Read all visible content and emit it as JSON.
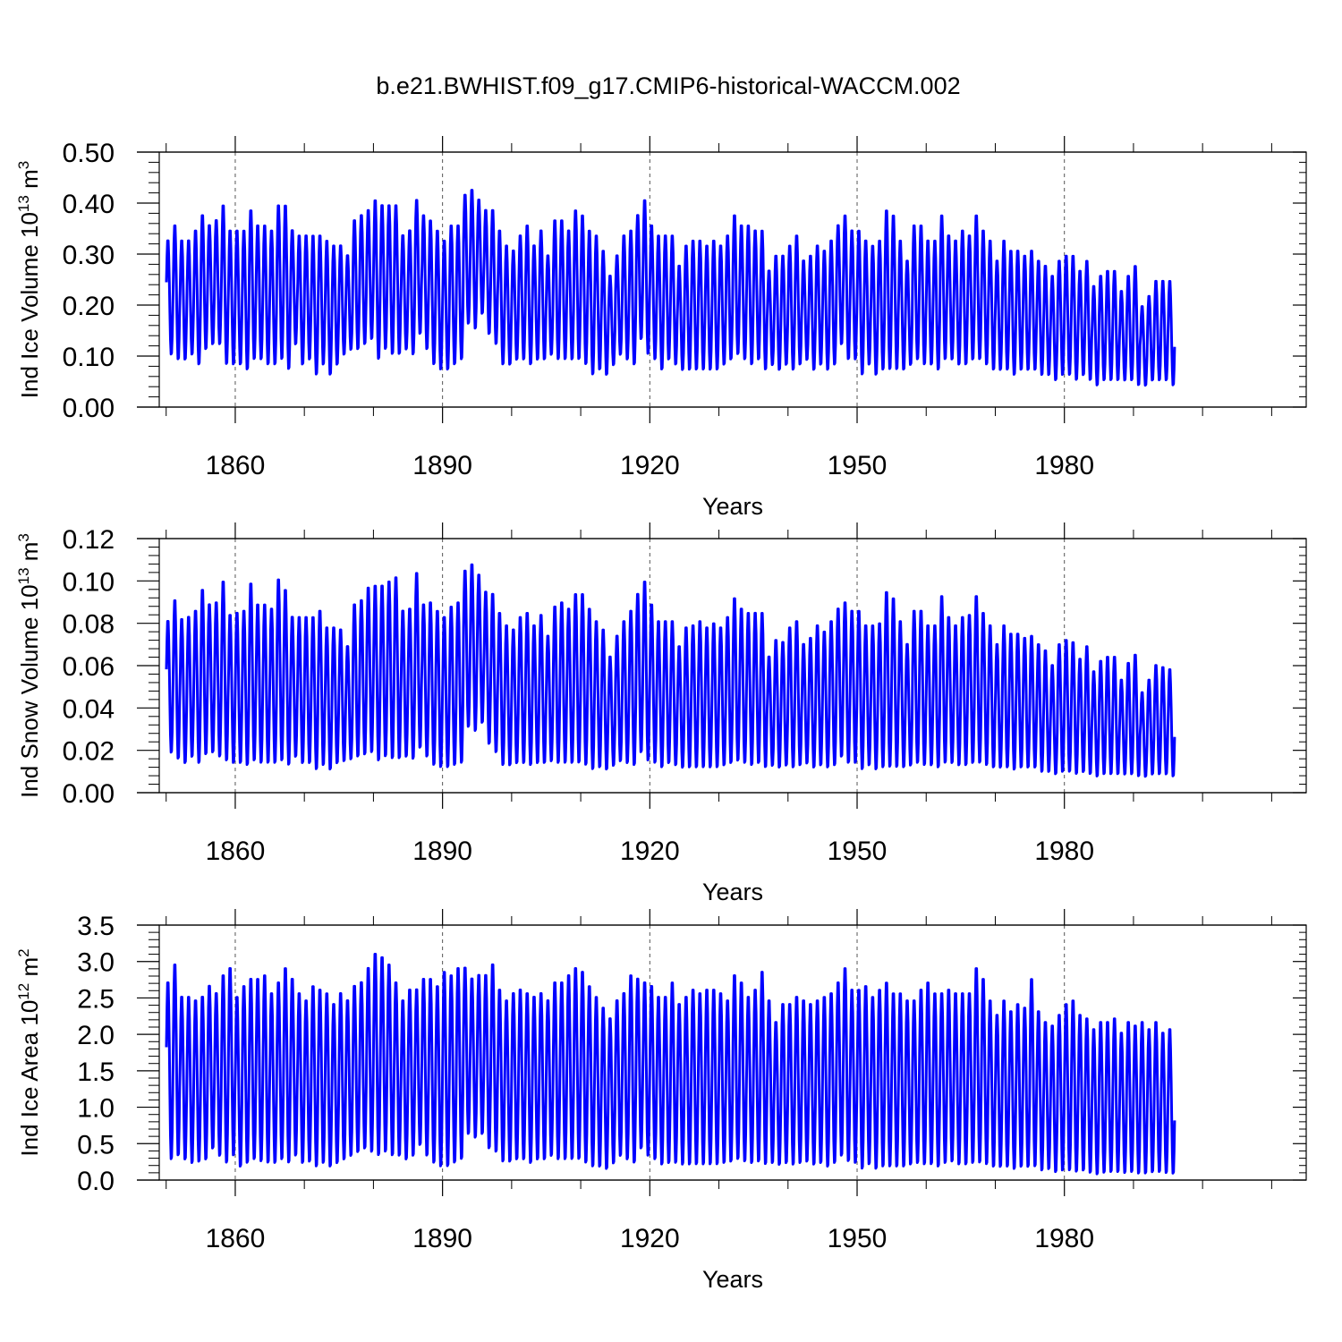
{
  "figure": {
    "title": "b.e21.BWHIST.f09_g17.CMIP6-historical-WACCM.002"
  },
  "style": {
    "line_color": "#0000ff",
    "axis_color": "#000000",
    "grid_color": "#000000"
  },
  "chart_data": [
    {
      "type": "line",
      "ylabel": "Ind Ice Volume 10¹³ m³",
      "ylabel_base": "Ind Ice Volume 10",
      "ylabel_exp1": "13",
      "ylabel_unit": " m",
      "ylabel_exp2": "3",
      "xlabel": "Years",
      "xlim": [
        1849,
        2015
      ],
      "ylim": [
        0,
        0.5
      ],
      "xticks": [
        1860,
        1890,
        1920,
        1950,
        1980
      ],
      "yticks": [
        "0.00",
        "0.10",
        "0.20",
        "0.30",
        "0.40",
        "0.50"
      ],
      "grid_x": true,
      "x": "monthly, Jan 1850 – Dec 2014",
      "series": [
        {
          "seasonal": true,
          "annual_max": [
            0.33,
            0.36,
            0.33,
            0.33,
            0.35,
            0.38,
            0.36,
            0.37,
            0.4,
            0.35,
            0.35,
            0.35,
            0.39,
            0.36,
            0.36,
            0.35,
            0.4,
            0.4,
            0.35,
            0.34,
            0.34,
            0.34,
            0.34,
            0.33,
            0.32,
            0.32,
            0.3,
            0.37,
            0.38,
            0.39,
            0.41,
            0.4,
            0.4,
            0.4,
            0.34,
            0.35,
            0.41,
            0.38,
            0.37,
            0.35,
            0.33,
            0.36,
            0.36,
            0.42,
            0.43,
            0.41,
            0.39,
            0.39,
            0.35,
            0.32,
            0.31,
            0.34,
            0.36,
            0.32,
            0.35,
            0.3,
            0.37,
            0.37,
            0.35,
            0.39,
            0.38,
            0.35,
            0.34,
            0.31,
            0.26,
            0.3,
            0.34,
            0.35,
            0.38,
            0.41,
            0.36,
            0.34,
            0.34,
            0.34,
            0.28,
            0.32,
            0.33,
            0.33,
            0.32,
            0.33,
            0.32,
            0.34,
            0.38,
            0.36,
            0.36,
            0.35,
            0.35,
            0.27,
            0.3,
            0.3,
            0.32,
            0.34,
            0.29,
            0.3,
            0.32,
            0.31,
            0.33,
            0.36,
            0.38,
            0.35,
            0.35,
            0.33,
            0.32,
            0.33,
            0.39,
            0.38,
            0.33,
            0.29,
            0.36,
            0.36,
            0.33,
            0.33,
            0.38,
            0.34,
            0.33,
            0.35,
            0.34,
            0.38,
            0.35,
            0.33,
            0.29,
            0.33,
            0.31,
            0.31,
            0.3,
            0.31,
            0.29,
            0.28,
            0.26,
            0.29,
            0.3,
            0.3,
            0.27,
            0.29,
            0.24,
            0.26,
            0.27,
            0.27,
            0.23,
            0.26,
            0.28,
            0.2,
            0.22,
            0.25,
            0.25,
            0.25
          ],
          "annual_min": [
            0.1,
            0.09,
            0.09,
            0.1,
            0.08,
            0.11,
            0.12,
            0.12,
            0.08,
            0.08,
            0.08,
            0.07,
            0.09,
            0.09,
            0.08,
            0.08,
            0.09,
            0.07,
            0.12,
            0.08,
            0.09,
            0.06,
            0.08,
            0.06,
            0.08,
            0.1,
            0.11,
            0.11,
            0.12,
            0.13,
            0.09,
            0.11,
            0.1,
            0.1,
            0.11,
            0.1,
            0.14,
            0.11,
            0.08,
            0.07,
            0.07,
            0.08,
            0.09,
            0.16,
            0.15,
            0.18,
            0.14,
            0.12,
            0.08,
            0.08,
            0.09,
            0.09,
            0.08,
            0.09,
            0.09,
            0.1,
            0.09,
            0.09,
            0.09,
            0.09,
            0.08,
            0.06,
            0.07,
            0.06,
            0.08,
            0.1,
            0.09,
            0.08,
            0.13,
            0.1,
            0.09,
            0.07,
            0.09,
            0.08,
            0.07,
            0.07,
            0.07,
            0.07,
            0.07,
            0.07,
            0.08,
            0.09,
            0.1,
            0.09,
            0.08,
            0.09,
            0.07,
            0.08,
            0.07,
            0.08,
            0.07,
            0.08,
            0.09,
            0.07,
            0.08,
            0.07,
            0.08,
            0.12,
            0.09,
            0.09,
            0.06,
            0.08,
            0.06,
            0.07,
            0.07,
            0.07,
            0.07,
            0.08,
            0.09,
            0.08,
            0.08,
            0.07,
            0.09,
            0.09,
            0.08,
            0.08,
            0.09,
            0.09,
            0.08,
            0.07,
            0.07,
            0.07,
            0.06,
            0.07,
            0.07,
            0.07,
            0.06,
            0.06,
            0.05,
            0.06,
            0.06,
            0.05,
            0.06,
            0.05,
            0.04,
            0.05,
            0.05,
            0.05,
            0.05,
            0.05,
            0.04,
            0.04,
            0.05,
            0.05,
            0.05,
            0.04
          ]
        }
      ]
    },
    {
      "type": "line",
      "ylabel": "Ind Snow Volume 10¹³ m³",
      "ylabel_base": "Ind Snow Volume 10",
      "ylabel_exp1": "13",
      "ylabel_unit": " m",
      "ylabel_exp2": "3",
      "xlabel": "Years",
      "xlim": [
        1849,
        2015
      ],
      "ylim": [
        0,
        0.12
      ],
      "xticks": [
        1860,
        1890,
        1920,
        1950,
        1980
      ],
      "yticks": [
        "0.00",
        "0.02",
        "0.04",
        "0.06",
        "0.08",
        "0.10",
        "0.12"
      ],
      "grid_x": true,
      "x": "monthly, Jan 1850 – Dec 2014",
      "series": [
        {
          "seasonal": true,
          "annual_max": [
            0.082,
            0.092,
            0.083,
            0.084,
            0.087,
            0.097,
            0.09,
            0.091,
            0.101,
            0.085,
            0.086,
            0.087,
            0.1,
            0.09,
            0.09,
            0.088,
            0.102,
            0.097,
            0.084,
            0.084,
            0.084,
            0.084,
            0.087,
            0.079,
            0.079,
            0.078,
            0.07,
            0.09,
            0.092,
            0.098,
            0.099,
            0.099,
            0.101,
            0.103,
            0.087,
            0.088,
            0.105,
            0.09,
            0.091,
            0.087,
            0.084,
            0.089,
            0.091,
            0.106,
            0.109,
            0.104,
            0.096,
            0.095,
            0.086,
            0.08,
            0.078,
            0.084,
            0.086,
            0.08,
            0.085,
            0.075,
            0.089,
            0.091,
            0.088,
            0.095,
            0.095,
            0.088,
            0.082,
            0.078,
            0.065,
            0.075,
            0.082,
            0.087,
            0.095,
            0.101,
            0.09,
            0.082,
            0.082,
            0.082,
            0.07,
            0.079,
            0.08,
            0.082,
            0.079,
            0.081,
            0.079,
            0.084,
            0.093,
            0.088,
            0.086,
            0.086,
            0.086,
            0.065,
            0.073,
            0.072,
            0.079,
            0.082,
            0.071,
            0.074,
            0.08,
            0.077,
            0.082,
            0.088,
            0.091,
            0.087,
            0.087,
            0.08,
            0.08,
            0.081,
            0.096,
            0.093,
            0.082,
            0.071,
            0.087,
            0.087,
            0.08,
            0.08,
            0.094,
            0.084,
            0.08,
            0.084,
            0.085,
            0.094,
            0.086,
            0.08,
            0.071,
            0.08,
            0.076,
            0.076,
            0.074,
            0.075,
            0.071,
            0.068,
            0.061,
            0.071,
            0.073,
            0.072,
            0.064,
            0.07,
            0.058,
            0.063,
            0.065,
            0.065,
            0.054,
            0.062,
            0.066,
            0.048,
            0.054,
            0.061,
            0.06,
            0.059
          ],
          "annual_min": [
            0.018,
            0.015,
            0.013,
            0.016,
            0.013,
            0.017,
            0.018,
            0.016,
            0.014,
            0.013,
            0.013,
            0.012,
            0.014,
            0.013,
            0.013,
            0.013,
            0.014,
            0.012,
            0.016,
            0.013,
            0.013,
            0.01,
            0.012,
            0.01,
            0.013,
            0.014,
            0.015,
            0.016,
            0.017,
            0.018,
            0.014,
            0.016,
            0.015,
            0.015,
            0.016,
            0.015,
            0.02,
            0.016,
            0.012,
            0.011,
            0.011,
            0.012,
            0.013,
            0.03,
            0.028,
            0.032,
            0.022,
            0.018,
            0.012,
            0.012,
            0.013,
            0.013,
            0.012,
            0.013,
            0.013,
            0.014,
            0.013,
            0.013,
            0.013,
            0.013,
            0.012,
            0.01,
            0.011,
            0.01,
            0.012,
            0.014,
            0.013,
            0.012,
            0.018,
            0.014,
            0.013,
            0.011,
            0.013,
            0.012,
            0.011,
            0.011,
            0.011,
            0.011,
            0.011,
            0.011,
            0.012,
            0.013,
            0.014,
            0.013,
            0.012,
            0.013,
            0.011,
            0.012,
            0.011,
            0.012,
            0.011,
            0.012,
            0.013,
            0.011,
            0.012,
            0.011,
            0.012,
            0.016,
            0.013,
            0.013,
            0.01,
            0.012,
            0.01,
            0.011,
            0.011,
            0.011,
            0.011,
            0.012,
            0.013,
            0.012,
            0.012,
            0.011,
            0.013,
            0.013,
            0.012,
            0.012,
            0.013,
            0.013,
            0.012,
            0.011,
            0.011,
            0.011,
            0.01,
            0.011,
            0.011,
            0.011,
            0.009,
            0.009,
            0.008,
            0.009,
            0.009,
            0.008,
            0.009,
            0.008,
            0.007,
            0.008,
            0.008,
            0.008,
            0.008,
            0.008,
            0.007,
            0.007,
            0.008,
            0.008,
            0.008,
            0.007
          ]
        }
      ]
    },
    {
      "type": "line",
      "ylabel": "Ind Ice Area 10¹² m²",
      "ylabel_base": "Ind Ice Area 10",
      "ylabel_exp1": "12",
      "ylabel_unit": " m",
      "ylabel_exp2": "2",
      "xlabel": "Years",
      "xlim": [
        1849,
        2015
      ],
      "ylim": [
        0,
        3.5
      ],
      "xticks": [
        1860,
        1890,
        1920,
        1950,
        1980
      ],
      "yticks": [
        "0.0",
        "0.5",
        "1.0",
        "1.5",
        "2.0",
        "2.5",
        "3.0",
        "3.5"
      ],
      "grid_x": true,
      "x": "monthly, Jan 1850 – Dec 2014",
      "series": [
        {
          "seasonal": true,
          "annual_max": [
            2.75,
            3.0,
            2.55,
            2.55,
            2.5,
            2.55,
            2.7,
            2.6,
            2.85,
            2.95,
            2.55,
            2.7,
            2.8,
            2.8,
            2.85,
            2.6,
            2.75,
            2.95,
            2.8,
            2.6,
            2.5,
            2.7,
            2.65,
            2.6,
            2.45,
            2.6,
            2.5,
            2.7,
            2.75,
            2.95,
            3.15,
            3.1,
            3.0,
            2.75,
            2.5,
            2.65,
            2.65,
            2.8,
            2.8,
            2.7,
            2.9,
            2.85,
            2.95,
            2.95,
            2.8,
            2.85,
            2.85,
            3.0,
            2.65,
            2.5,
            2.6,
            2.65,
            2.6,
            2.55,
            2.6,
            2.5,
            2.75,
            2.75,
            2.85,
            2.95,
            2.9,
            2.7,
            2.55,
            2.4,
            2.25,
            2.5,
            2.6,
            2.85,
            2.8,
            2.75,
            2.7,
            2.55,
            2.55,
            2.75,
            2.45,
            2.55,
            2.65,
            2.6,
            2.65,
            2.65,
            2.6,
            2.5,
            2.85,
            2.75,
            2.55,
            2.65,
            2.9,
            2.5,
            2.2,
            2.45,
            2.45,
            2.55,
            2.5,
            2.45,
            2.5,
            2.55,
            2.6,
            2.75,
            2.95,
            2.65,
            2.65,
            2.7,
            2.55,
            2.65,
            2.75,
            2.6,
            2.6,
            2.5,
            2.5,
            2.65,
            2.75,
            2.6,
            2.6,
            2.65,
            2.6,
            2.6,
            2.6,
            2.95,
            2.8,
            2.5,
            2.3,
            2.5,
            2.35,
            2.45,
            2.4,
            2.8,
            2.35,
            2.2,
            2.15,
            2.3,
            2.45,
            2.5,
            2.3,
            2.25,
            2.1,
            2.2,
            2.2,
            2.25,
            2.05,
            2.2,
            2.15,
            2.2,
            2.1,
            2.2,
            2.05,
            2.1
          ],
          "annual_min": [
            0.25,
            0.3,
            0.25,
            0.2,
            0.22,
            0.25,
            0.4,
            0.3,
            0.2,
            0.3,
            0.15,
            0.2,
            0.25,
            0.22,
            0.2,
            0.2,
            0.25,
            0.2,
            0.3,
            0.2,
            0.22,
            0.15,
            0.2,
            0.15,
            0.2,
            0.25,
            0.3,
            0.35,
            0.4,
            0.35,
            0.3,
            0.35,
            0.3,
            0.3,
            0.25,
            0.3,
            0.45,
            0.3,
            0.2,
            0.15,
            0.15,
            0.2,
            0.25,
            0.6,
            0.55,
            0.6,
            0.4,
            0.35,
            0.22,
            0.22,
            0.25,
            0.25,
            0.2,
            0.25,
            0.25,
            0.3,
            0.25,
            0.25,
            0.25,
            0.25,
            0.2,
            0.15,
            0.15,
            0.12,
            0.2,
            0.3,
            0.25,
            0.2,
            0.4,
            0.3,
            0.25,
            0.18,
            0.2,
            0.2,
            0.18,
            0.18,
            0.18,
            0.18,
            0.18,
            0.18,
            0.2,
            0.22,
            0.25,
            0.22,
            0.2,
            0.22,
            0.18,
            0.2,
            0.18,
            0.2,
            0.18,
            0.2,
            0.22,
            0.18,
            0.2,
            0.15,
            0.2,
            0.3,
            0.22,
            0.2,
            0.12,
            0.18,
            0.12,
            0.15,
            0.15,
            0.15,
            0.15,
            0.18,
            0.2,
            0.18,
            0.18,
            0.15,
            0.2,
            0.22,
            0.18,
            0.18,
            0.2,
            0.2,
            0.18,
            0.15,
            0.15,
            0.15,
            0.12,
            0.15,
            0.15,
            0.15,
            0.1,
            0.12,
            0.08,
            0.1,
            0.1,
            0.08,
            0.1,
            0.07,
            0.05,
            0.07,
            0.08,
            0.08,
            0.07,
            0.08,
            0.06,
            0.06,
            0.08,
            0.08,
            0.07,
            0.06
          ]
        }
      ]
    }
  ]
}
